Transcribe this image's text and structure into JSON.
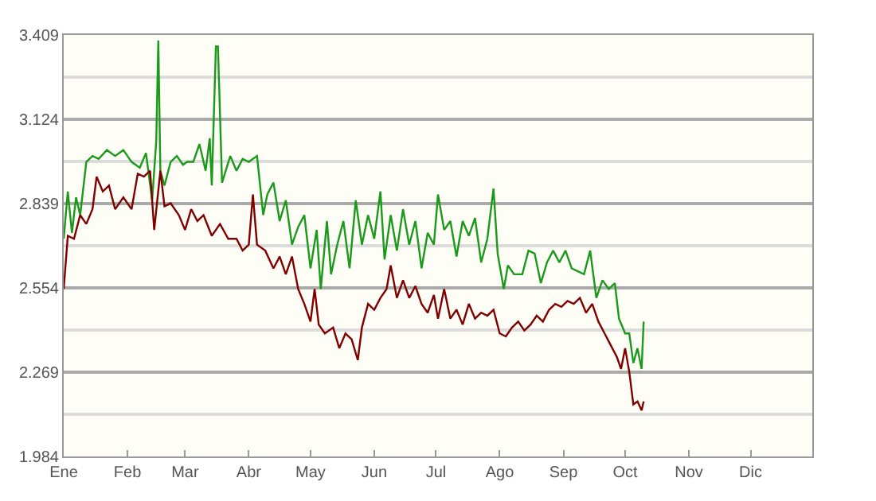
{
  "chart_data": {
    "type": "line",
    "xlim": [
      "--01-01",
      "--12-31"
    ],
    "xticks": [
      {
        "value": "--01-01",
        "label": "Ene"
      },
      {
        "value": "--02-01",
        "label": "Feb"
      },
      {
        "value": "--03-01",
        "label": "Mar"
      },
      {
        "value": "--04-01",
        "label": "Abr"
      },
      {
        "value": "--05-01",
        "label": "May"
      },
      {
        "value": "--06-01",
        "label": "Jun"
      },
      {
        "value": "--07-01",
        "label": "Jul"
      },
      {
        "value": "--08-01",
        "label": "Ago"
      },
      {
        "value": "--09-01",
        "label": "Sep"
      },
      {
        "value": "--10-01",
        "label": "Oct"
      },
      {
        "value": "--11-01",
        "label": "Nov"
      },
      {
        "value": "--12-01",
        "label": "Dic"
      }
    ],
    "ylim": [
      1.984,
      3.409
    ],
    "yticks": [
      1.984,
      2.269,
      2.554,
      2.839,
      3.124,
      3.409
    ],
    "grid": "y",
    "marker": "none",
    "line_style": "solid",
    "series": [
      {
        "color": "#1a9a1a",
        "x": [
          "--01-01",
          "--01-03",
          "--01-05",
          "--01-07",
          "--01-09",
          "--01-12",
          "--01-15",
          "--01-18",
          "--01-22",
          "--01-26",
          "--01-30",
          "--02-03",
          "--02-07",
          "--02-10",
          "--02-13",
          "--02-15",
          "--02-16",
          "--02-17",
          "--02-19",
          "--02-22",
          "--02-25",
          "--02-28",
          "--03-02",
          "--03-05",
          "--03-08",
          "--03-11",
          "--03-13",
          "--03-14",
          "--03-16",
          "--03-17",
          "--03-19",
          "--03-23",
          "--03-26",
          "--03-29",
          "--04-01",
          "--04-05",
          "--04-08",
          "--04-10",
          "--04-13",
          "--04-16",
          "--04-19",
          "--04-22",
          "--04-25",
          "--04-28",
          "--05-01",
          "--05-04",
          "--05-06",
          "--05-09",
          "--05-11",
          "--05-14",
          "--05-17",
          "--05-20",
          "--05-23",
          "--05-26",
          "--05-29",
          "--06-01",
          "--06-04",
          "--06-06",
          "--06-09",
          "--06-12",
          "--06-15",
          "--06-18",
          "--06-21",
          "--06-24",
          "--06-27",
          "--06-30",
          "--07-02",
          "--07-05",
          "--07-08",
          "--07-11",
          "--07-14",
          "--07-17",
          "--07-20",
          "--07-23",
          "--07-26",
          "--07-29",
          "--07-31",
          "--08-03",
          "--08-05",
          "--08-08",
          "--08-12",
          "--08-15",
          "--08-18",
          "--08-21",
          "--08-24",
          "--08-27",
          "--08-30",
          "--09-02",
          "--09-05",
          "--09-08",
          "--09-11",
          "--09-14",
          "--09-17",
          "--09-20",
          "--09-23",
          "--09-26",
          "--09-28",
          "--10-01",
          "--10-03",
          "--10-05",
          "--10-07",
          "--10-09",
          "--10-10"
        ],
        "values": [
          2.72,
          2.88,
          2.74,
          2.86,
          2.8,
          2.98,
          3.0,
          2.99,
          3.02,
          3.0,
          3.02,
          2.98,
          2.96,
          3.01,
          2.85,
          3.05,
          3.39,
          2.95,
          2.9,
          2.98,
          3.0,
          2.97,
          2.98,
          2.98,
          3.04,
          2.95,
          3.06,
          2.9,
          3.37,
          3.37,
          2.91,
          3.0,
          2.95,
          2.99,
          2.98,
          3.0,
          2.8,
          2.87,
          2.91,
          2.78,
          2.85,
          2.7,
          2.76,
          2.8,
          2.62,
          2.75,
          2.55,
          2.78,
          2.6,
          2.7,
          2.78,
          2.62,
          2.85,
          2.7,
          2.8,
          2.72,
          2.88,
          2.65,
          2.8,
          2.68,
          2.82,
          2.7,
          2.78,
          2.62,
          2.74,
          2.7,
          2.87,
          2.75,
          2.78,
          2.66,
          2.78,
          2.73,
          2.79,
          2.64,
          2.72,
          2.89,
          2.67,
          2.55,
          2.63,
          2.6,
          2.6,
          2.68,
          2.67,
          2.57,
          2.64,
          2.68,
          2.64,
          2.68,
          2.62,
          2.61,
          2.6,
          2.68,
          2.52,
          2.58,
          2.55,
          2.57,
          2.45,
          2.4,
          2.4,
          2.3,
          2.35,
          2.28,
          2.44
        ]
      },
      {
        "color": "#800000",
        "x": [
          "--01-01",
          "--01-03",
          "--01-06",
          "--01-09",
          "--01-12",
          "--01-15",
          "--01-17",
          "--01-20",
          "--01-23",
          "--01-26",
          "--01-30",
          "--02-03",
          "--02-06",
          "--02-09",
          "--02-12",
          "--02-14",
          "--02-17",
          "--02-19",
          "--02-22",
          "--02-26",
          "--03-01",
          "--03-04",
          "--03-07",
          "--03-10",
          "--03-14",
          "--03-18",
          "--03-22",
          "--03-26",
          "--03-29",
          "--04-01",
          "--04-03",
          "--04-05",
          "--04-09",
          "--04-13",
          "--04-16",
          "--04-19",
          "--04-22",
          "--04-25",
          "--04-28",
          "--05-01",
          "--05-03",
          "--05-05",
          "--05-08",
          "--05-12",
          "--05-15",
          "--05-18",
          "--05-21",
          "--05-24",
          "--05-26",
          "--05-29",
          "--06-01",
          "--06-04",
          "--06-07",
          "--06-09",
          "--06-12",
          "--06-15",
          "--06-18",
          "--06-21",
          "--06-24",
          "--06-27",
          "--06-30",
          "--07-02",
          "--07-05",
          "--07-08",
          "--07-11",
          "--07-14",
          "--07-17",
          "--07-20",
          "--07-23",
          "--07-26",
          "--07-29",
          "--08-01",
          "--08-04",
          "--08-07",
          "--08-10",
          "--08-13",
          "--08-16",
          "--08-19",
          "--08-22",
          "--08-25",
          "--08-28",
          "--08-31",
          "--09-03",
          "--09-06",
          "--09-09",
          "--09-12",
          "--09-15",
          "--09-18",
          "--09-21",
          "--09-24",
          "--09-27",
          "--09-29",
          "--10-01",
          "--10-03",
          "--10-05",
          "--10-07",
          "--10-09",
          "--10-10"
        ],
        "values": [
          2.55,
          2.73,
          2.72,
          2.8,
          2.77,
          2.82,
          2.93,
          2.88,
          2.9,
          2.82,
          2.86,
          2.82,
          2.94,
          2.93,
          2.95,
          2.75,
          2.95,
          2.83,
          2.84,
          2.8,
          2.75,
          2.82,
          2.78,
          2.8,
          2.73,
          2.77,
          2.72,
          2.72,
          2.68,
          2.7,
          2.87,
          2.7,
          2.68,
          2.62,
          2.66,
          2.6,
          2.66,
          2.55,
          2.5,
          2.44,
          2.55,
          2.43,
          2.4,
          2.42,
          2.35,
          2.4,
          2.38,
          2.31,
          2.42,
          2.5,
          2.48,
          2.52,
          2.55,
          2.63,
          2.52,
          2.58,
          2.52,
          2.56,
          2.5,
          2.47,
          2.53,
          2.45,
          2.55,
          2.45,
          2.48,
          2.43,
          2.5,
          2.45,
          2.47,
          2.46,
          2.48,
          2.4,
          2.39,
          2.42,
          2.44,
          2.41,
          2.43,
          2.46,
          2.44,
          2.48,
          2.5,
          2.49,
          2.51,
          2.5,
          2.52,
          2.47,
          2.5,
          2.44,
          2.4,
          2.36,
          2.32,
          2.28,
          2.35,
          2.27,
          2.16,
          2.17,
          2.14,
          2.17
        ]
      }
    ]
  }
}
